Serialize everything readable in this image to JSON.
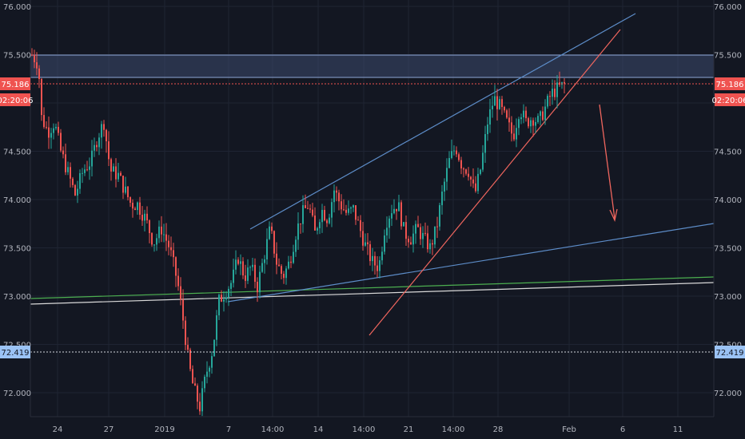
{
  "chart_data": {
    "type": "candlestick",
    "title": "",
    "xlabel": "",
    "ylabel": "",
    "ylim": [
      71.75,
      76.05
    ],
    "y_ticks": [
      "76.000",
      "75.500",
      "75.000",
      "74.500",
      "74.000",
      "73.500",
      "73.000",
      "72.500",
      "72.000"
    ],
    "y_tick_values": [
      76.0,
      75.5,
      75.0,
      74.5,
      74.0,
      73.5,
      73.0,
      72.5,
      72.0
    ],
    "x_ticks": [
      "24",
      "27",
      "2019",
      "7",
      "14:00",
      "14",
      "14:00",
      "21",
      "14:00",
      "28",
      "Feb",
      "6",
      "11"
    ],
    "x_tick_positions": [
      72,
      136,
      206,
      286,
      341,
      398,
      455,
      511,
      567,
      623,
      712,
      779,
      848
    ],
    "grid": true,
    "price_label": "75.186",
    "price_value": 75.186,
    "countdown_label": "02:20:06",
    "support_label": "72.419",
    "support_value": 72.419,
    "resistance_zone": [
      75.25,
      75.5
    ],
    "candle_seed": 7,
    "anchors": [
      [
        40,
        75.5
      ],
      [
        48,
        75.4
      ],
      [
        52,
        74.85
      ],
      [
        60,
        74.7
      ],
      [
        68,
        74.8
      ],
      [
        76,
        74.5
      ],
      [
        84,
        74.3
      ],
      [
        94,
        74.05
      ],
      [
        104,
        74.3
      ],
      [
        114,
        74.4
      ],
      [
        122,
        74.65
      ],
      [
        130,
        74.8
      ],
      [
        138,
        74.3
      ],
      [
        148,
        74.25
      ],
      [
        156,
        74.1
      ],
      [
        164,
        73.95
      ],
      [
        172,
        73.95
      ],
      [
        182,
        73.8
      ],
      [
        192,
        73.55
      ],
      [
        202,
        73.7
      ],
      [
        212,
        73.5
      ],
      [
        222,
        73.15
      ],
      [
        230,
        72.7
      ],
      [
        236,
        72.3
      ],
      [
        242,
        72.05
      ],
      [
        250,
        71.85
      ],
      [
        258,
        72.2
      ],
      [
        266,
        72.45
      ],
      [
        274,
        72.95
      ],
      [
        282,
        73.05
      ],
      [
        290,
        73.15
      ],
      [
        298,
        73.4
      ],
      [
        306,
        73.2
      ],
      [
        314,
        73.3
      ],
      [
        322,
        73.1
      ],
      [
        330,
        73.4
      ],
      [
        338,
        73.7
      ],
      [
        346,
        73.35
      ],
      [
        354,
        73.2
      ],
      [
        362,
        73.35
      ],
      [
        370,
        73.65
      ],
      [
        378,
        73.85
      ],
      [
        386,
        73.95
      ],
      [
        394,
        73.65
      ],
      [
        402,
        73.9
      ],
      [
        410,
        73.8
      ],
      [
        418,
        74.1
      ],
      [
        426,
        73.95
      ],
      [
        434,
        73.85
      ],
      [
        442,
        73.9
      ],
      [
        450,
        73.7
      ],
      [
        458,
        73.5
      ],
      [
        466,
        73.35
      ],
      [
        474,
        73.3
      ],
      [
        482,
        73.75
      ],
      [
        490,
        73.9
      ],
      [
        498,
        73.95
      ],
      [
        506,
        73.65
      ],
      [
        514,
        73.6
      ],
      [
        522,
        73.7
      ],
      [
        530,
        73.6
      ],
      [
        538,
        73.5
      ],
      [
        546,
        73.7
      ],
      [
        554,
        74.1
      ],
      [
        562,
        74.4
      ],
      [
        570,
        74.55
      ],
      [
        578,
        74.35
      ],
      [
        586,
        74.3
      ],
      [
        594,
        74.05
      ],
      [
        602,
        74.35
      ],
      [
        610,
        74.8
      ],
      [
        618,
        75.05
      ],
      [
        626,
        74.95
      ],
      [
        634,
        74.8
      ],
      [
        642,
        74.65
      ],
      [
        650,
        74.95
      ],
      [
        658,
        74.8
      ],
      [
        666,
        74.85
      ],
      [
        674,
        74.8
      ],
      [
        682,
        74.95
      ],
      [
        690,
        75.1
      ],
      [
        698,
        75.15
      ],
      [
        706,
        75.19
      ]
    ]
  },
  "colors": {
    "background": "#131722",
    "up": "#26a69a",
    "down": "#ef5350",
    "grid": "#1f2433",
    "axis_text": "#b2b5be",
    "trend_blue": "#5d8dc9",
    "trend_red": "#f0665e",
    "green_line": "#4caf50",
    "white_line": "#d9d9d9"
  }
}
